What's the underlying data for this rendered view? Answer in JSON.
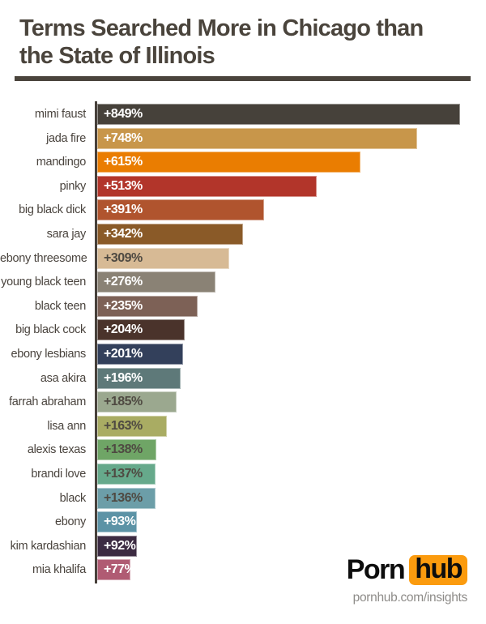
{
  "title": {
    "line1": "Terms Searched More in Chicago than",
    "line2": "the State of Illinois"
  },
  "chart_data": {
    "type": "bar",
    "orientation": "horizontal",
    "title": "Terms Searched More in Chicago than the State of Illinois",
    "xlabel": "",
    "ylabel": "",
    "xlim": [
      0,
      849
    ],
    "grid": false,
    "categories": [
      "mimi faust",
      "jada fire",
      "mandingo",
      "pinky",
      "big black dick",
      "sara jay",
      "ebony threesome",
      "young black teen",
      "black teen",
      "big black cock",
      "ebony lesbians",
      "asa akira",
      "farrah abraham",
      "lisa ann",
      "alexis texas",
      "brandi love",
      "black",
      "ebony",
      "kim kardashian",
      "mia khalifa"
    ],
    "values": [
      849,
      748,
      615,
      513,
      391,
      342,
      309,
      276,
      235,
      204,
      201,
      196,
      185,
      163,
      138,
      137,
      136,
      93,
      92,
      77
    ],
    "value_labels": [
      "+849%",
      "+748%",
      "+615%",
      "+513%",
      "+391%",
      "+342%",
      "+309%",
      "+276%",
      "+235%",
      "+204%",
      "+201%",
      "+196%",
      "+185%",
      "+163%",
      "+138%",
      "+137%",
      "+136%",
      "+93%",
      "+92%",
      "+77%"
    ],
    "bar_colors": [
      "#46413a",
      "#c8964a",
      "#ea7d01",
      "#b2352a",
      "#b0542e",
      "#8a5a28",
      "#d7ba95",
      "#8a8275",
      "#7d6156",
      "#4a332b",
      "#33405b",
      "#5e7979",
      "#9ba88f",
      "#a9ac63",
      "#6fa566",
      "#66a98b",
      "#6c9ea8",
      "#5c93a6",
      "#3c2b42",
      "#b05b73"
    ],
    "value_text_colors": [
      "#ffffff",
      "#ffffff",
      "#ffffff",
      "#ffffff",
      "#ffffff",
      "#ffffff",
      "#4f4a42",
      "#ffffff",
      "#ffffff",
      "#ffffff",
      "#ffffff",
      "#ffffff",
      "#4f4a42",
      "#4f4a42",
      "#4f4a42",
      "#4f4a42",
      "#4f4a42",
      "#ffffff",
      "#ffffff",
      "#ffffff"
    ]
  },
  "colors": {
    "title_text": "#4a443c",
    "title_rule": "#4a443c",
    "axis_line": "#47413b",
    "category_label": "#4a443e",
    "background": "#ffffff",
    "logo_badge_orange": "#fb9b0e",
    "logo_text_black": "#0d0d0d",
    "footer_url_gray": "#8e8c89"
  },
  "footer": {
    "logo_porn": "Porn",
    "logo_hub": "hub",
    "url": "pornhub.com/insights"
  }
}
